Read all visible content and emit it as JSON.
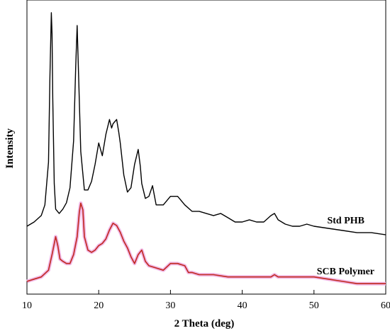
{
  "chart_data": {
    "type": "line",
    "title": "",
    "xlabel": "2 Theta (deg)",
    "ylabel": "Intensity",
    "xlim": [
      10,
      60
    ],
    "x_ticks": [
      "10",
      "20",
      "30",
      "40",
      "50",
      "60"
    ],
    "y_ticks_shown": false,
    "grid": false,
    "legend": "none (series labeled inline at right)",
    "series": [
      {
        "name": "Std PHB",
        "color": "#000000",
        "x": [
          10.0,
          11.0,
          12.0,
          12.5,
          13.0,
          13.2,
          13.4,
          13.5,
          13.6,
          13.8,
          14.0,
          14.5,
          15.0,
          15.5,
          16.0,
          16.5,
          16.8,
          17.0,
          17.2,
          17.5,
          18.0,
          18.5,
          19.0,
          19.5,
          20.0,
          20.5,
          21.0,
          21.5,
          21.8,
          22.0,
          22.5,
          22.8,
          23.0,
          23.5,
          24.0,
          24.5,
          25.0,
          25.5,
          25.8,
          26.0,
          26.5,
          27.0,
          27.5,
          28.0,
          29.0,
          30.0,
          31.0,
          32.0,
          33.0,
          34.0,
          35.0,
          36.0,
          37.0,
          38.0,
          39.0,
          40.0,
          41.0,
          42.0,
          43.0,
          44.0,
          44.5,
          45.0,
          46.0,
          47.0,
          48.0,
          49.0,
          50.0,
          52.0,
          54.0,
          56.0,
          58.0,
          60.0
        ],
        "y": [
          0.0,
          0.02,
          0.05,
          0.1,
          0.3,
          0.7,
          1.0,
          0.9,
          0.6,
          0.2,
          0.08,
          0.06,
          0.08,
          0.11,
          0.18,
          0.4,
          0.75,
          0.94,
          0.7,
          0.35,
          0.17,
          0.17,
          0.21,
          0.29,
          0.39,
          0.33,
          0.43,
          0.5,
          0.46,
          0.48,
          0.5,
          0.44,
          0.39,
          0.24,
          0.16,
          0.18,
          0.29,
          0.36,
          0.28,
          0.2,
          0.13,
          0.14,
          0.19,
          0.1,
          0.1,
          0.14,
          0.14,
          0.1,
          0.07,
          0.07,
          0.06,
          0.05,
          0.06,
          0.04,
          0.02,
          0.02,
          0.03,
          0.02,
          0.02,
          0.05,
          0.06,
          0.03,
          0.01,
          0.0,
          0.0,
          0.01,
          0.0,
          -0.01,
          -0.02,
          -0.03,
          -0.03,
          -0.04
        ]
      },
      {
        "name": "SCB Polymer",
        "color": "#c0281e",
        "x": [
          10.0,
          11.0,
          12.0,
          13.0,
          13.5,
          14.0,
          14.3,
          14.6,
          15.0,
          15.5,
          16.0,
          16.5,
          17.0,
          17.3,
          17.5,
          17.8,
          18.0,
          18.5,
          19.0,
          19.5,
          20.0,
          20.5,
          21.0,
          21.5,
          22.0,
          22.5,
          23.0,
          23.5,
          24.0,
          24.5,
          25.0,
          25.5,
          26.0,
          26.5,
          27.0,
          28.0,
          29.0,
          30.0,
          31.0,
          32.0,
          32.5,
          33.0,
          34.0,
          36.0,
          38.0,
          40.0,
          42.0,
          44.0,
          44.5,
          45.0,
          46.0,
          48.0,
          50.0,
          52.0,
          54.0,
          56.0,
          58.0,
          60.0
        ],
        "y": [
          0.0,
          0.01,
          0.02,
          0.05,
          0.12,
          0.2,
          0.16,
          0.1,
          0.09,
          0.08,
          0.08,
          0.12,
          0.2,
          0.31,
          0.35,
          0.32,
          0.2,
          0.14,
          0.13,
          0.14,
          0.16,
          0.17,
          0.19,
          0.23,
          0.26,
          0.25,
          0.22,
          0.18,
          0.15,
          0.11,
          0.08,
          0.12,
          0.14,
          0.09,
          0.07,
          0.06,
          0.05,
          0.08,
          0.08,
          0.07,
          0.04,
          0.04,
          0.03,
          0.03,
          0.02,
          0.02,
          0.02,
          0.02,
          0.03,
          0.02,
          0.02,
          0.02,
          0.02,
          0.01,
          0.0,
          -0.01,
          -0.01,
          -0.01
        ]
      }
    ]
  }
}
